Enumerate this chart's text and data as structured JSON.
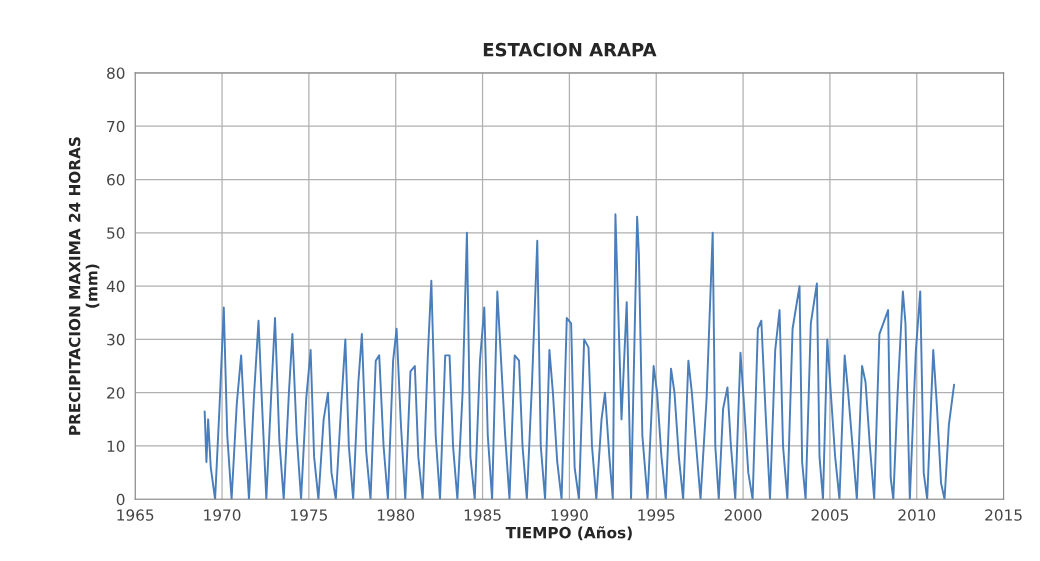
{
  "chart_data": {
    "type": "line",
    "title": "ESTACION ARAPA",
    "xlabel": "TIEMPO (Años)",
    "ylabel": "PRECIPITACION MAXIMA 24 HORAS\n(mm)",
    "xlim": [
      1965,
      2015
    ],
    "xticks": [
      1965,
      1970,
      1975,
      1980,
      1985,
      1990,
      1995,
      2000,
      2005,
      2010,
      2015
    ],
    "ylim": [
      0,
      80
    ],
    "yticks": [
      0,
      10,
      20,
      30,
      40,
      50,
      60,
      70,
      80
    ],
    "grid": true,
    "marker": "none",
    "line_style": "solid",
    "series": [
      {
        "color": "#4a7ebb",
        "x": [
          1969.0,
          1969.1,
          1969.2,
          1969.35,
          1969.6,
          1969.85,
          1970.1,
          1970.3,
          1970.55,
          1970.85,
          1971.1,
          1971.3,
          1971.55,
          1971.85,
          1972.1,
          1972.3,
          1972.55,
          1972.85,
          1973.05,
          1973.3,
          1973.55,
          1973.85,
          1974.05,
          1974.3,
          1974.55,
          1974.85,
          1975.1,
          1975.3,
          1975.55,
          1975.85,
          1976.1,
          1976.3,
          1976.55,
          1976.85,
          1977.1,
          1977.3,
          1977.55,
          1977.85,
          1978.05,
          1978.3,
          1978.55,
          1978.85,
          1979.05,
          1979.3,
          1979.55,
          1979.85,
          1980.05,
          1980.3,
          1980.55,
          1980.85,
          1981.1,
          1981.3,
          1981.55,
          1981.85,
          1982.05,
          1982.3,
          1982.55,
          1982.85,
          1983.1,
          1983.3,
          1983.55,
          1983.85,
          1984.1,
          1984.3,
          1984.55,
          1984.85,
          1985.1,
          1985.3,
          1985.55,
          1985.85,
          1986.05,
          1986.3,
          1986.55,
          1986.85,
          1987.1,
          1987.3,
          1987.55,
          1987.85,
          1988.15,
          1988.35,
          1988.6,
          1988.85,
          1989.05,
          1989.3,
          1989.55,
          1989.85,
          1990.1,
          1990.3,
          1990.55,
          1990.85,
          1991.1,
          1991.3,
          1991.55,
          1991.85,
          1992.05,
          1992.3,
          1992.5,
          1992.65,
          1993.0,
          1993.3,
          1993.55,
          1993.9,
          1994.0,
          1994.2,
          1994.5,
          1994.85,
          1995.05,
          1995.3,
          1995.55,
          1995.85,
          1996.05,
          1996.3,
          1996.55,
          1996.85,
          1997.05,
          1997.3,
          1997.55,
          1997.9,
          1998.25,
          1998.4,
          1998.6,
          1998.85,
          1999.1,
          1999.3,
          1999.55,
          1999.85,
          2000.05,
          2000.3,
          2000.55,
          2000.85,
          2001.05,
          2001.3,
          2001.55,
          2001.85,
          2002.1,
          2002.3,
          2002.55,
          2002.85,
          2003.25,
          2003.4,
          2003.6,
          2003.9,
          2004.25,
          2004.4,
          2004.6,
          2004.85,
          2005.05,
          2005.3,
          2005.55,
          2005.85,
          2006.05,
          2006.3,
          2006.55,
          2006.85,
          2007.05,
          2007.3,
          2007.55,
          2007.85,
          2008.35,
          2008.5,
          2008.65,
          2008.9,
          2009.2,
          2009.35,
          2009.6,
          2009.95,
          2010.2,
          2010.4,
          2010.6,
          2010.95,
          2011.15,
          2011.4,
          2011.6,
          2011.85,
          2012.15
        ],
        "values": [
          16.5,
          7,
          15,
          6,
          0,
          17,
          36,
          12,
          0,
          18,
          27,
          14,
          0,
          20,
          33.5,
          18,
          0,
          21,
          34,
          11,
          0,
          20,
          31,
          12,
          0,
          19,
          28,
          8,
          0,
          15,
          20,
          5,
          0,
          17,
          30,
          10,
          0,
          22,
          31,
          9,
          0,
          26,
          27,
          10,
          0,
          26,
          32,
          14,
          0,
          24,
          25,
          8,
          0,
          27,
          41,
          12,
          0,
          27,
          27,
          10,
          0,
          20,
          50,
          8,
          0,
          26,
          36,
          12,
          0,
          39,
          27,
          12,
          0,
          27,
          26,
          10,
          0,
          22,
          48.5,
          10,
          0,
          28,
          20,
          7,
          0,
          34,
          33,
          6,
          0,
          30,
          28.5,
          10,
          0,
          15,
          20,
          8,
          0,
          53.5,
          15,
          37,
          0,
          53,
          46,
          12,
          0,
          25,
          20,
          8,
          0,
          24.5,
          20,
          8,
          0,
          26,
          20,
          10,
          0,
          19,
          50,
          10,
          0,
          17,
          21,
          10,
          0,
          27.5,
          18,
          5,
          0,
          32,
          33.5,
          16,
          0,
          28,
          35.5,
          10,
          0,
          32,
          40,
          7,
          0,
          33,
          40.5,
          8,
          0,
          30,
          20,
          8,
          0,
          27,
          20,
          10,
          0,
          25,
          22,
          10,
          0,
          31,
          35.5,
          4,
          0,
          20,
          39,
          33,
          0,
          28,
          39,
          5,
          0,
          28,
          18,
          3,
          0,
          14,
          21.5
        ]
      }
    ]
  }
}
